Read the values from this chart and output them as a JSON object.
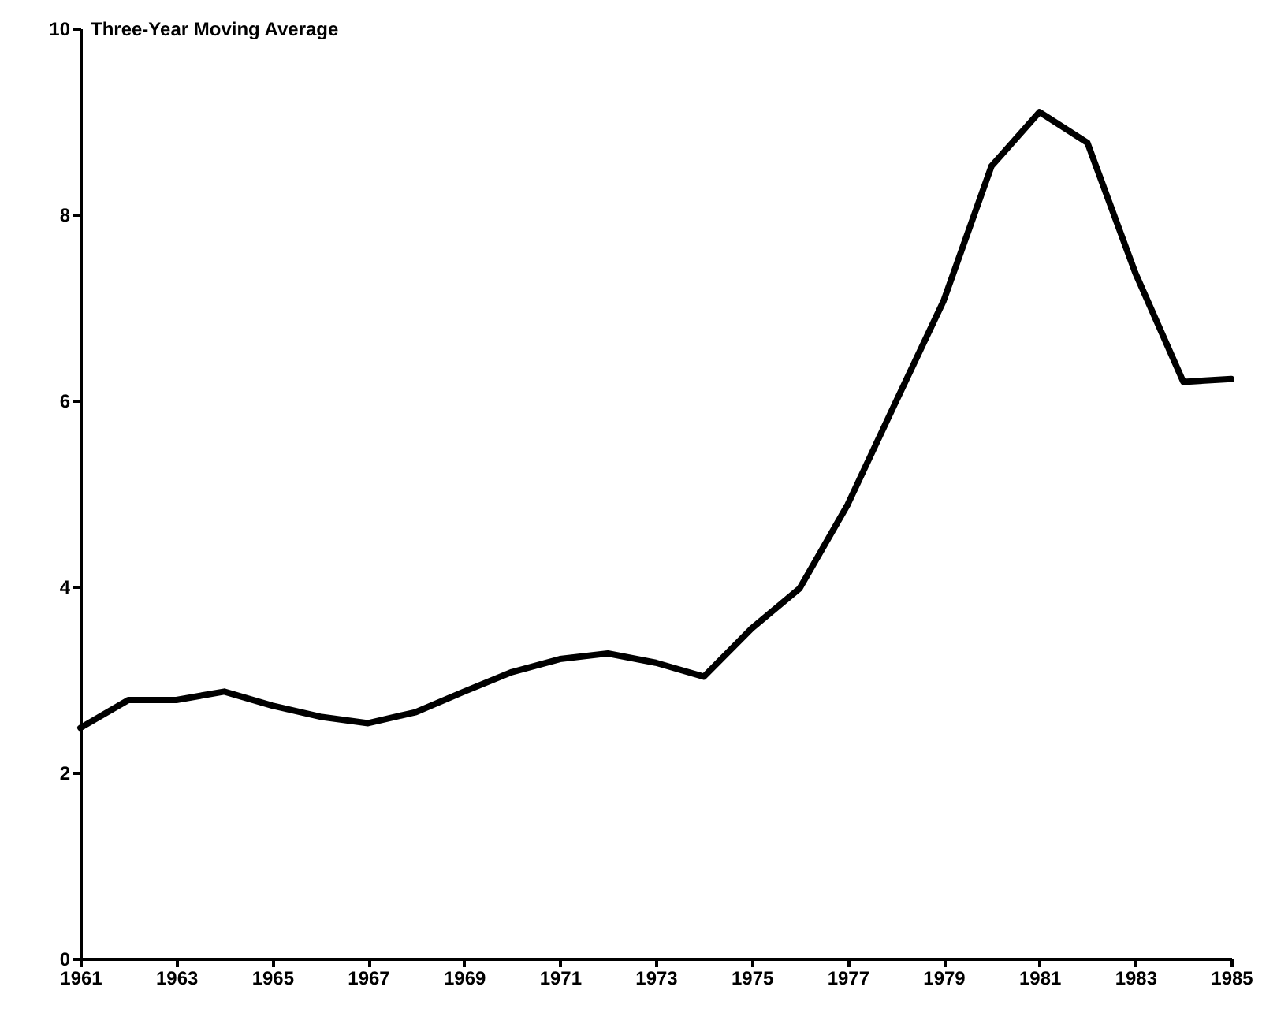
{
  "chart_data": {
    "type": "line",
    "ylabel": "Three-Year Moving Average",
    "x": [
      1961,
      1962,
      1963,
      1964,
      1965,
      1966,
      1967,
      1968,
      1969,
      1970,
      1971,
      1972,
      1973,
      1974,
      1975,
      1976,
      1977,
      1978,
      1979,
      1980,
      1981,
      1982,
      1983,
      1984,
      1985
    ],
    "series": [
      {
        "color": "#000000",
        "values": [
          2.48,
          2.78,
          2.78,
          2.87,
          2.72,
          2.6,
          2.53,
          2.65,
          2.87,
          3.08,
          3.22,
          3.28,
          3.18,
          3.03,
          3.55,
          3.98,
          4.88,
          5.98,
          7.07,
          8.52,
          9.1,
          8.77,
          7.37,
          6.2,
          6.23
        ]
      }
    ],
    "xlim": [
      1961,
      1985
    ],
    "xticks": [
      1961,
      1963,
      1965,
      1967,
      1969,
      1971,
      1973,
      1975,
      1977,
      1979,
      1981,
      1983,
      1985
    ],
    "ylim": [
      0,
      10
    ],
    "yticks": [
      0,
      2,
      4,
      6,
      8,
      10
    ],
    "grid": false,
    "legend": false,
    "marker": "none",
    "line_style": "solid"
  }
}
